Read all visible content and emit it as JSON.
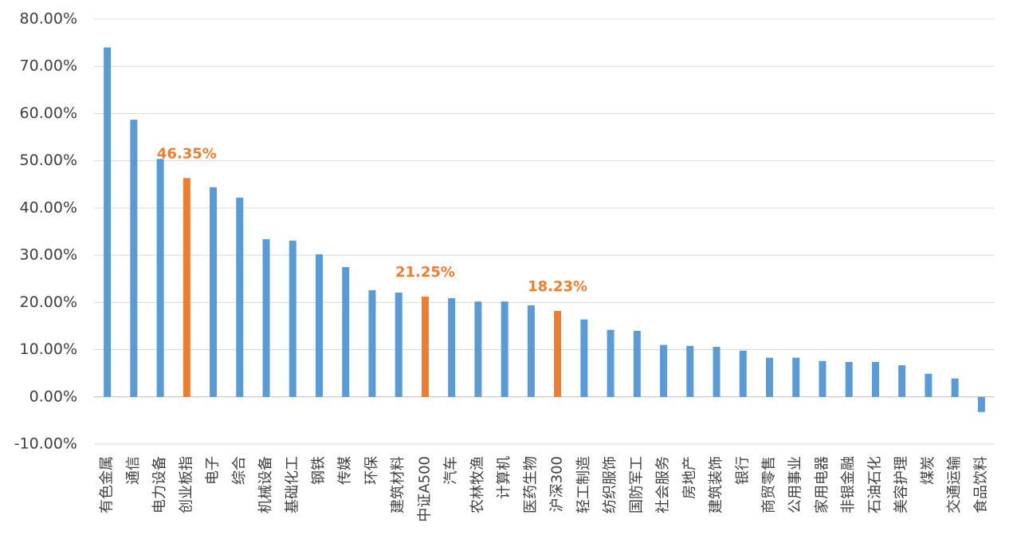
{
  "chart_data": {
    "type": "bar",
    "categories": [
      "有色金属",
      "通信",
      "电力设备",
      "创业板指",
      "电子",
      "综合",
      "机械设备",
      "基础化工",
      "钢铁",
      "传媒",
      "环保",
      "建筑材料",
      "中证A500",
      "汽车",
      "农林牧渔",
      "计算机",
      "医药生物",
      "沪深300",
      "轻工制造",
      "纺织服饰",
      "国防军工",
      "社会服务",
      "房地产",
      "建筑装饰",
      "银行",
      "商贸零售",
      "公用事业",
      "家用电器",
      "非银金融",
      "石油石化",
      "美容护理",
      "煤炭",
      "交通运输",
      "食品饮料"
    ],
    "values": [
      74.0,
      58.7,
      50.4,
      46.35,
      44.4,
      42.2,
      33.4,
      33.1,
      30.2,
      27.5,
      22.6,
      22.1,
      21.25,
      20.9,
      20.2,
      20.2,
      19.4,
      18.23,
      16.4,
      14.2,
      14.0,
      11.0,
      10.8,
      10.6,
      9.8,
      8.3,
      8.3,
      7.6,
      7.4,
      7.4,
      6.7,
      4.9,
      3.9,
      -3.2
    ],
    "value_labels": [
      null,
      null,
      null,
      "46.35%",
      null,
      null,
      null,
      null,
      null,
      null,
      null,
      null,
      "21.25%",
      null,
      null,
      null,
      null,
      "18.23%",
      null,
      null,
      null,
      null,
      null,
      null,
      null,
      null,
      null,
      null,
      null,
      null,
      null,
      null,
      null,
      null
    ],
    "colors": [
      "#5b9bd5",
      "#5b9bd5",
      "#5b9bd5",
      "#ed7d31",
      "#5b9bd5",
      "#5b9bd5",
      "#5b9bd5",
      "#5b9bd5",
      "#5b9bd5",
      "#5b9bd5",
      "#5b9bd5",
      "#5b9bd5",
      "#ed7d31",
      "#5b9bd5",
      "#5b9bd5",
      "#5b9bd5",
      "#5b9bd5",
      "#ed7d31",
      "#5b9bd5",
      "#5b9bd5",
      "#5b9bd5",
      "#5b9bd5",
      "#5b9bd5",
      "#5b9bd5",
      "#5b9bd5",
      "#5b9bd5",
      "#5b9bd5",
      "#5b9bd5",
      "#5b9bd5",
      "#5b9bd5",
      "#5b9bd5",
      "#5b9bd5",
      "#5b9bd5",
      "#5b9bd5"
    ],
    "ylim": [
      -10,
      80
    ],
    "yticks": [
      {
        "value": -10,
        "label": "-10.00%"
      },
      {
        "value": 0,
        "label": "0.00%"
      },
      {
        "value": 10,
        "label": "10.00%"
      },
      {
        "value": 20,
        "label": "20.00%"
      },
      {
        "value": 30,
        "label": "30.00%"
      },
      {
        "value": 40,
        "label": "40.00%"
      },
      {
        "value": 50,
        "label": "50.00%"
      },
      {
        "value": 60,
        "label": "60.00%"
      },
      {
        "value": 70,
        "label": "70.00%"
      },
      {
        "value": 80,
        "label": "80.00%"
      }
    ],
    "grid": true
  }
}
